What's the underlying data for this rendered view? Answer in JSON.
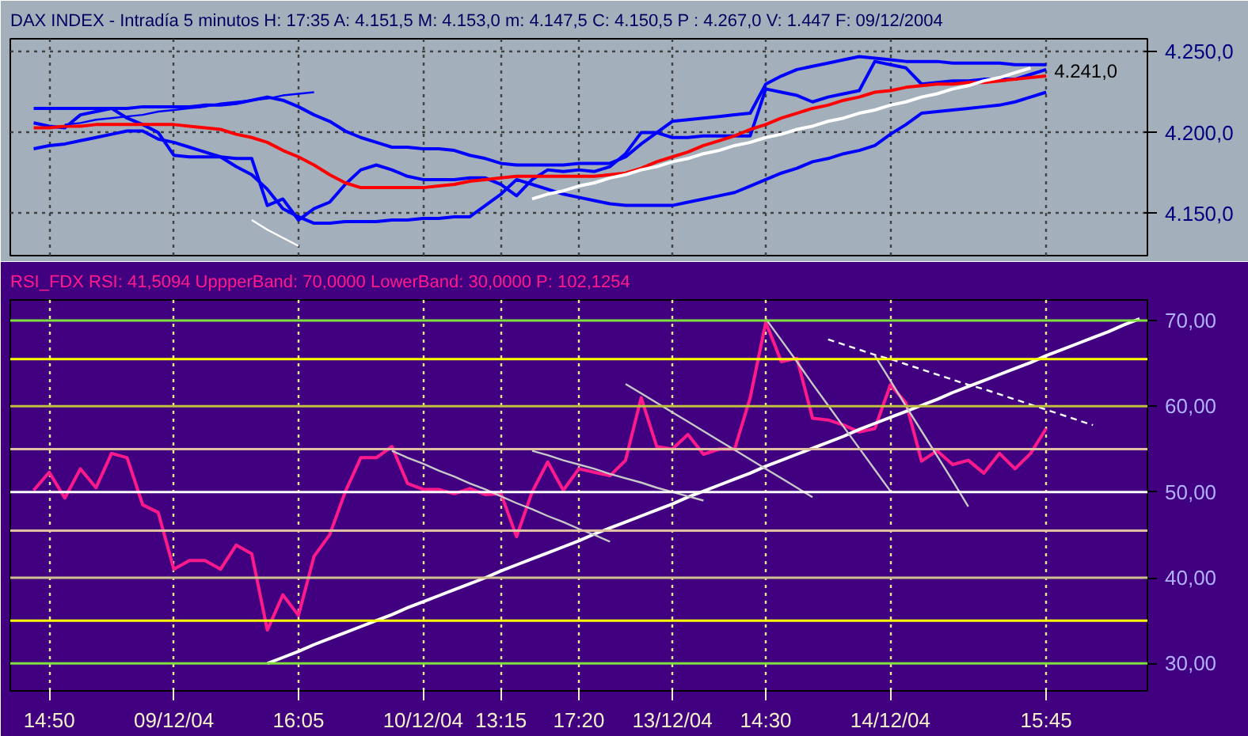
{
  "chart_data": [
    {
      "type": "line",
      "title": "DAX INDEX - Intradía 5 minutos  H: 17:35  A: 4.151,5  M: 4.153,0  m: 4.147,5  C: 4.150,5  P : 4.267,0  V: 1.447  F: 09/12/2004",
      "categories": [
        null,
        null,
        "14:50",
        null,
        null,
        null,
        null,
        null,
        null,
        null,
        "09/12/04",
        null,
        null,
        null,
        null,
        null,
        null,
        null,
        "16:05",
        null,
        null,
        null,
        null,
        null,
        null,
        null,
        "10/12/04",
        null,
        null,
        null,
        null,
        "13:15",
        null,
        null,
        null,
        null,
        "17:20",
        null,
        null,
        null,
        null,
        null,
        "13/12/04",
        null,
        null,
        null,
        null,
        null,
        "14:30",
        null,
        null,
        null,
        null,
        null,
        null,
        null,
        "14/12/04",
        null,
        null,
        null,
        null,
        null,
        null,
        null,
        null,
        null,
        "15:45",
        null,
        null,
        null,
        null,
        null,
        null
      ],
      "ylim": [
        4124,
        4258
      ],
      "yticks": [
        {
          "value": 4150,
          "label": "4.150,0"
        },
        {
          "value": 4200,
          "label": "4.200,0"
        },
        {
          "value": 4250,
          "label": "4.250,0"
        }
      ],
      "tick_labels": "y",
      "grid": true,
      "series": [
        {
          "color": "#0000ff",
          "values": [
            null,
            4206,
            4204,
            4203,
            4211,
            4213,
            4215,
            4209,
            4205,
            4200,
            4186,
            4185,
            4185,
            4185,
            4184,
            4184,
            4155,
            4159,
            4146,
            4153,
            4157,
            4168,
            4177,
            4180,
            4177,
            4173,
            4171,
            4171,
            4171,
            4172,
            4172,
            4168,
            4161,
            4171,
            4177,
            4176,
            4177,
            4176,
            4179,
            4187,
            4200,
            4200,
            4197,
            4197,
            4198,
            4198,
            4198,
            4198,
            4227,
            4225,
            4223,
            4219,
            4222,
            4224,
            4226,
            4244,
            4242,
            4240,
            4230,
            4231,
            4232,
            4232,
            4233,
            4233,
            4233,
            4236,
            4239,
            null,
            null,
            null,
            null,
            null,
            null
          ]
        },
        {
          "color": "#ff0000",
          "values": [
            null,
            4203,
            4203,
            4204,
            4204,
            4205,
            4205,
            4205,
            4205,
            4205,
            4205,
            4204,
            4203,
            4202,
            4199,
            4197,
            4194,
            4189,
            4185,
            4180,
            4174,
            4169,
            4166,
            4166,
            4166,
            4166,
            4166,
            4167,
            4168,
            4170,
            4171,
            4172,
            4173,
            4173,
            4173,
            4173,
            4173,
            4173,
            4174,
            4175,
            4178,
            4182,
            4185,
            4188,
            4192,
            4195,
            4198,
            4202,
            4205,
            4209,
            4212,
            4215,
            4217,
            4220,
            4222,
            4225,
            4226,
            4228,
            4229,
            4230,
            4230,
            4231,
            4231,
            4232,
            4233,
            4234,
            4235,
            null,
            null,
            null,
            null,
            null,
            null
          ]
        },
        {
          "color": "#0000ff",
          "values": [
            null,
            4215,
            4215,
            4215,
            4215,
            4215,
            4215,
            4215,
            4216,
            4216,
            4216,
            4216,
            4217,
            4217,
            4218,
            4220,
            4222,
            4220,
            4216,
            4211,
            4207,
            4201,
            4197,
            4194,
            4191,
            4191,
            4190,
            4190,
            4189,
            4186,
            4184,
            4181,
            4180,
            4180,
            4180,
            4180,
            4181,
            4181,
            4181,
            4185,
            4193,
            4200,
            4207,
            4208,
            4209,
            4210,
            4211,
            4212,
            4230,
            4235,
            4239,
            4241,
            4243,
            4245,
            4247,
            4246,
            4245,
            4244,
            4244,
            4244,
            4243,
            4243,
            4243,
            4243,
            4242,
            4242,
            4242,
            null,
            null,
            null,
            null,
            null,
            null
          ]
        },
        {
          "color": "#0000ff",
          "values": [
            null,
            4190,
            4192,
            4193,
            4195,
            4197,
            4199,
            4201,
            4201,
            4196,
            4194,
            4191,
            4188,
            4185,
            4179,
            4174,
            4165,
            4153,
            4148,
            4144,
            4144,
            4145,
            4145,
            4145,
            4146,
            4146,
            4147,
            4147,
            4148,
            4148,
            4155,
            4162,
            4171,
            4168,
            4165,
            4162,
            4160,
            4158,
            4156,
            4155,
            4155,
            4155,
            4155,
            4157,
            4159,
            4161,
            4163,
            4167,
            4171,
            4175,
            4178,
            4182,
            4184,
            4187,
            4189,
            4192,
            4199,
            4205,
            4212,
            4213,
            4214,
            4215,
            4216,
            4217,
            4219,
            4222,
            4225,
            null,
            null,
            null,
            null,
            null,
            null
          ]
        },
        {
          "color": "#0000ff",
          "values": [
            null,
            null,
            null,
            4205,
            4206,
            4208,
            4209,
            4210,
            4211,
            4213,
            4214,
            4215,
            4216,
            4218,
            4219,
            4220,
            4221,
            4223,
            4224,
            4225,
            null,
            null,
            null,
            null,
            null,
            null,
            null,
            null,
            null,
            null,
            null,
            null,
            null,
            null,
            null,
            null,
            null,
            null,
            null,
            null,
            null,
            null,
            null,
            null,
            null,
            null,
            null,
            null,
            null,
            null,
            null,
            null,
            null,
            null,
            null,
            null,
            null,
            null,
            null,
            null,
            null,
            null,
            null,
            null,
            null,
            null,
            null,
            null,
            null,
            null,
            null,
            null,
            null
          ]
        },
        {
          "color": "#ffffff",
          "values": [
            null,
            null,
            null,
            null,
            null,
            null,
            null,
            null,
            null,
            null,
            null,
            null,
            null,
            null,
            null,
            4146,
            4140,
            4135,
            4130,
            null,
            null,
            null,
            null,
            null,
            null,
            null,
            null,
            null,
            null,
            null,
            null,
            null,
            null,
            null,
            null,
            null,
            null,
            null,
            null,
            null,
            null,
            null,
            null,
            null,
            null,
            null,
            null,
            null,
            null,
            null,
            null,
            null,
            null,
            null,
            null,
            null,
            null,
            null,
            null,
            null,
            null,
            null,
            null,
            null,
            null,
            null,
            null,
            null,
            null,
            null,
            null,
            null,
            null
          ]
        },
        {
          "color": "#ffffff",
          "values": [
            null,
            null,
            null,
            null,
            null,
            null,
            null,
            null,
            null,
            null,
            null,
            null,
            null,
            null,
            null,
            null,
            null,
            null,
            null,
            null,
            null,
            null,
            null,
            null,
            null,
            null,
            null,
            null,
            null,
            null,
            null,
            null,
            null,
            4159,
            4162,
            4164,
            4167,
            4169,
            4172,
            4174,
            4177,
            4179,
            4182,
            4184,
            4187,
            4189,
            4192,
            4194,
            4197,
            4199,
            4202,
            4204,
            4207,
            4209,
            4212,
            4214,
            4217,
            4219,
            4222,
            4224,
            4227,
            4229,
            4232,
            4234,
            4237,
            4240,
            null,
            null,
            null,
            null,
            null,
            null,
            null
          ]
        }
      ],
      "annotations": [
        {
          "text": "4.241,0",
          "x": "15:45",
          "y": 4241
        }
      ]
    },
    {
      "type": "line",
      "title": "RSI_FDX RSI: 41,5094  UppperBand: 70,0000  LowerBand: 30,0000  P: 102,1254",
      "categories": [
        null,
        null,
        "14:50",
        null,
        null,
        null,
        null,
        null,
        null,
        null,
        "09/12/04",
        null,
        null,
        null,
        null,
        null,
        null,
        null,
        "16:05",
        null,
        null,
        null,
        null,
        null,
        null,
        null,
        "10/12/04",
        null,
        null,
        null,
        null,
        "13:15",
        null,
        null,
        null,
        null,
        "17:20",
        null,
        null,
        null,
        null,
        null,
        "13/12/04",
        null,
        null,
        null,
        null,
        null,
        "14:30",
        null,
        null,
        null,
        null,
        null,
        null,
        null,
        "14/12/04",
        null,
        null,
        null,
        null,
        null,
        null,
        null,
        null,
        null,
        "15:45",
        null,
        null,
        null,
        null,
        null,
        null
      ],
      "ylim": [
        26.8,
        72.4
      ],
      "yticks": [
        {
          "value": 30,
          "label": "30,00"
        },
        {
          "value": 40,
          "label": "40,00"
        },
        {
          "value": 50,
          "label": "50,00"
        },
        {
          "value": 60,
          "label": "60,00"
        },
        {
          "value": 70,
          "label": "70,00"
        }
      ],
      "grid": "x",
      "series": [
        {
          "color": "#ff1a8c",
          "values": [
            null,
            50.2,
            52.3,
            49.3,
            52.7,
            50.5,
            54.5,
            54.0,
            48.5,
            47.6,
            41.0,
            42.0,
            42.0,
            41.0,
            43.8,
            42.8,
            33.9,
            38.0,
            35.6,
            42.5,
            45.0,
            50.0,
            54.0,
            54.0,
            55.3,
            51.0,
            50.3,
            50.3,
            49.8,
            50.4,
            49.7,
            49.8,
            44.8,
            50.0,
            53.5,
            50.2,
            52.7,
            52.3,
            51.9,
            53.7,
            61.0,
            55.3,
            55.0,
            56.7,
            54.4,
            55.0,
            55.0,
            61.0,
            69.8,
            65.2,
            65.6,
            58.6,
            58.4,
            57.8,
            57.0,
            57.4,
            62.5,
            60.4,
            53.6,
            54.8,
            53.2,
            53.7,
            52.2,
            54.5,
            52.7,
            54.5,
            57.4,
            null,
            null,
            null,
            null,
            null,
            null
          ]
        },
        {
          "color": "#ffffff",
          "values": [
            null,
            null,
            null,
            null,
            null,
            null,
            null,
            null,
            null,
            null,
            null,
            null,
            null,
            null,
            null,
            null,
            30.0,
            30.7,
            31.4,
            32.2,
            32.9,
            33.6,
            34.3,
            35.0,
            35.7,
            36.5,
            37.2,
            37.9,
            38.6,
            39.3,
            40.0,
            40.8,
            41.5,
            42.2,
            42.9,
            43.6,
            44.3,
            45.1,
            45.8,
            46.5,
            47.2,
            47.9,
            48.6,
            49.4,
            50.1,
            50.8,
            51.5,
            52.2,
            53.0,
            53.7,
            54.4,
            55.1,
            55.8,
            56.5,
            57.3,
            58.0,
            58.7,
            59.4,
            60.1,
            60.8,
            61.6,
            62.3,
            63.0,
            63.7,
            64.4,
            65.1,
            65.9,
            66.6,
            67.3,
            68.0,
            68.7,
            69.5,
            70.2
          ]
        },
        {
          "color": "#c8c8c8",
          "values": [
            null,
            null,
            null,
            null,
            null,
            null,
            null,
            null,
            null,
            null,
            null,
            null,
            null,
            null,
            null,
            null,
            null,
            null,
            null,
            null,
            null,
            null,
            null,
            null,
            54.8,
            54.0,
            53.3,
            52.5,
            51.8,
            51.0,
            50.3,
            49.5,
            48.7,
            48.0,
            47.2,
            46.5,
            45.7,
            45.0,
            44.2,
            null,
            null,
            null,
            null,
            null,
            null,
            null,
            null,
            null,
            null,
            null,
            null,
            null,
            null,
            null,
            null,
            null,
            null,
            null,
            null,
            null,
            null,
            null,
            null,
            null,
            null,
            null,
            null,
            null,
            null,
            null,
            null,
            null,
            null
          ]
        },
        {
          "color": "#c8c8c8",
          "values": [
            null,
            null,
            null,
            null,
            null,
            null,
            null,
            null,
            null,
            null,
            null,
            null,
            null,
            null,
            null,
            null,
            null,
            null,
            null,
            null,
            null,
            null,
            null,
            null,
            null,
            null,
            null,
            null,
            null,
            null,
            null,
            null,
            null,
            54.8,
            54.3,
            53.7,
            53.2,
            52.7,
            52.1,
            51.6,
            51.1,
            50.5,
            50.0,
            49.5,
            49.0,
            null,
            null,
            null,
            null,
            null,
            null,
            null,
            null,
            null,
            null,
            null,
            null,
            null,
            null,
            null,
            null,
            null,
            null,
            null,
            null,
            null,
            null,
            null,
            null,
            null,
            null,
            null,
            null
          ]
        },
        {
          "color": "#c8c8c8",
          "values": [
            null,
            null,
            null,
            null,
            null,
            null,
            null,
            null,
            null,
            null,
            null,
            null,
            null,
            null,
            null,
            null,
            null,
            null,
            null,
            null,
            null,
            null,
            null,
            null,
            null,
            null,
            null,
            null,
            null,
            null,
            null,
            null,
            null,
            null,
            null,
            null,
            null,
            null,
            null,
            62.6,
            61.5,
            60.4,
            59.3,
            58.2,
            57.1,
            56.0,
            54.9,
            53.8,
            52.7,
            51.6,
            50.5,
            49.4,
            null,
            null,
            null,
            null,
            null,
            null,
            null,
            null,
            null,
            null,
            null,
            null,
            null,
            null,
            null,
            null,
            null,
            null,
            null,
            null,
            null
          ]
        },
        {
          "color": "#c8c8c8",
          "values": [
            null,
            null,
            null,
            null,
            null,
            null,
            null,
            null,
            null,
            null,
            null,
            null,
            null,
            null,
            null,
            null,
            null,
            null,
            null,
            null,
            null,
            null,
            null,
            null,
            null,
            null,
            null,
            null,
            null,
            null,
            null,
            null,
            null,
            null,
            null,
            null,
            null,
            null,
            null,
            null,
            null,
            null,
            null,
            null,
            null,
            null,
            null,
            null,
            70.2,
            67.7,
            65.2,
            62.6,
            60.1,
            57.6,
            55.1,
            52.6,
            50.1,
            null,
            null,
            null,
            null,
            null,
            null,
            null,
            null,
            null,
            null,
            null,
            null,
            null,
            null,
            null,
            null
          ]
        },
        {
          "color": "#c8c8c8",
          "values": [
            null,
            null,
            null,
            null,
            null,
            null,
            null,
            null,
            null,
            null,
            null,
            null,
            null,
            null,
            null,
            null,
            null,
            null,
            null,
            null,
            null,
            null,
            null,
            null,
            null,
            null,
            null,
            null,
            null,
            null,
            null,
            null,
            null,
            null,
            null,
            null,
            null,
            null,
            null,
            null,
            null,
            null,
            null,
            null,
            null,
            null,
            null,
            null,
            null,
            null,
            null,
            null,
            null,
            null,
            null,
            65.9,
            63.0,
            60.0,
            57.1,
            54.2,
            51.3,
            48.3,
            null,
            null,
            null,
            null,
            null,
            null,
            null,
            null,
            null,
            null,
            null
          ]
        },
        {
          "color": "#ffffff",
          "line_style": "dashed",
          "values": [
            null,
            null,
            null,
            null,
            null,
            null,
            null,
            null,
            null,
            null,
            null,
            null,
            null,
            null,
            null,
            null,
            null,
            null,
            null,
            null,
            null,
            null,
            null,
            null,
            null,
            null,
            null,
            null,
            null,
            null,
            null,
            null,
            null,
            null,
            null,
            null,
            null,
            null,
            null,
            null,
            null,
            null,
            null,
            null,
            null,
            null,
            null,
            null,
            null,
            null,
            null,
            null,
            67.8,
            67.2,
            66.6,
            66.0,
            65.5,
            64.9,
            64.3,
            63.7,
            63.1,
            62.5,
            62.0,
            61.4,
            60.8,
            60.2,
            59.6,
            59.0,
            58.4,
            57.8,
            null,
            null,
            null
          ]
        }
      ],
      "ref_lines": [
        {
          "axis": "y",
          "value": 70,
          "color": "#80e040"
        },
        {
          "axis": "y",
          "value": 65.5,
          "color": "#ffff00"
        },
        {
          "axis": "y",
          "value": 60,
          "color": "#c0c040"
        },
        {
          "axis": "y",
          "value": 55,
          "color": "#e0c0a0"
        },
        {
          "axis": "y",
          "value": 50,
          "color": "#ffffff"
        },
        {
          "axis": "y",
          "value": 45.5,
          "color": "#e0c0a0"
        },
        {
          "axis": "y",
          "value": 40,
          "color": "#d0c090"
        },
        {
          "axis": "y",
          "value": 35,
          "color": "#ffff00"
        },
        {
          "axis": "y",
          "value": 30,
          "color": "#80e040"
        }
      ]
    }
  ]
}
